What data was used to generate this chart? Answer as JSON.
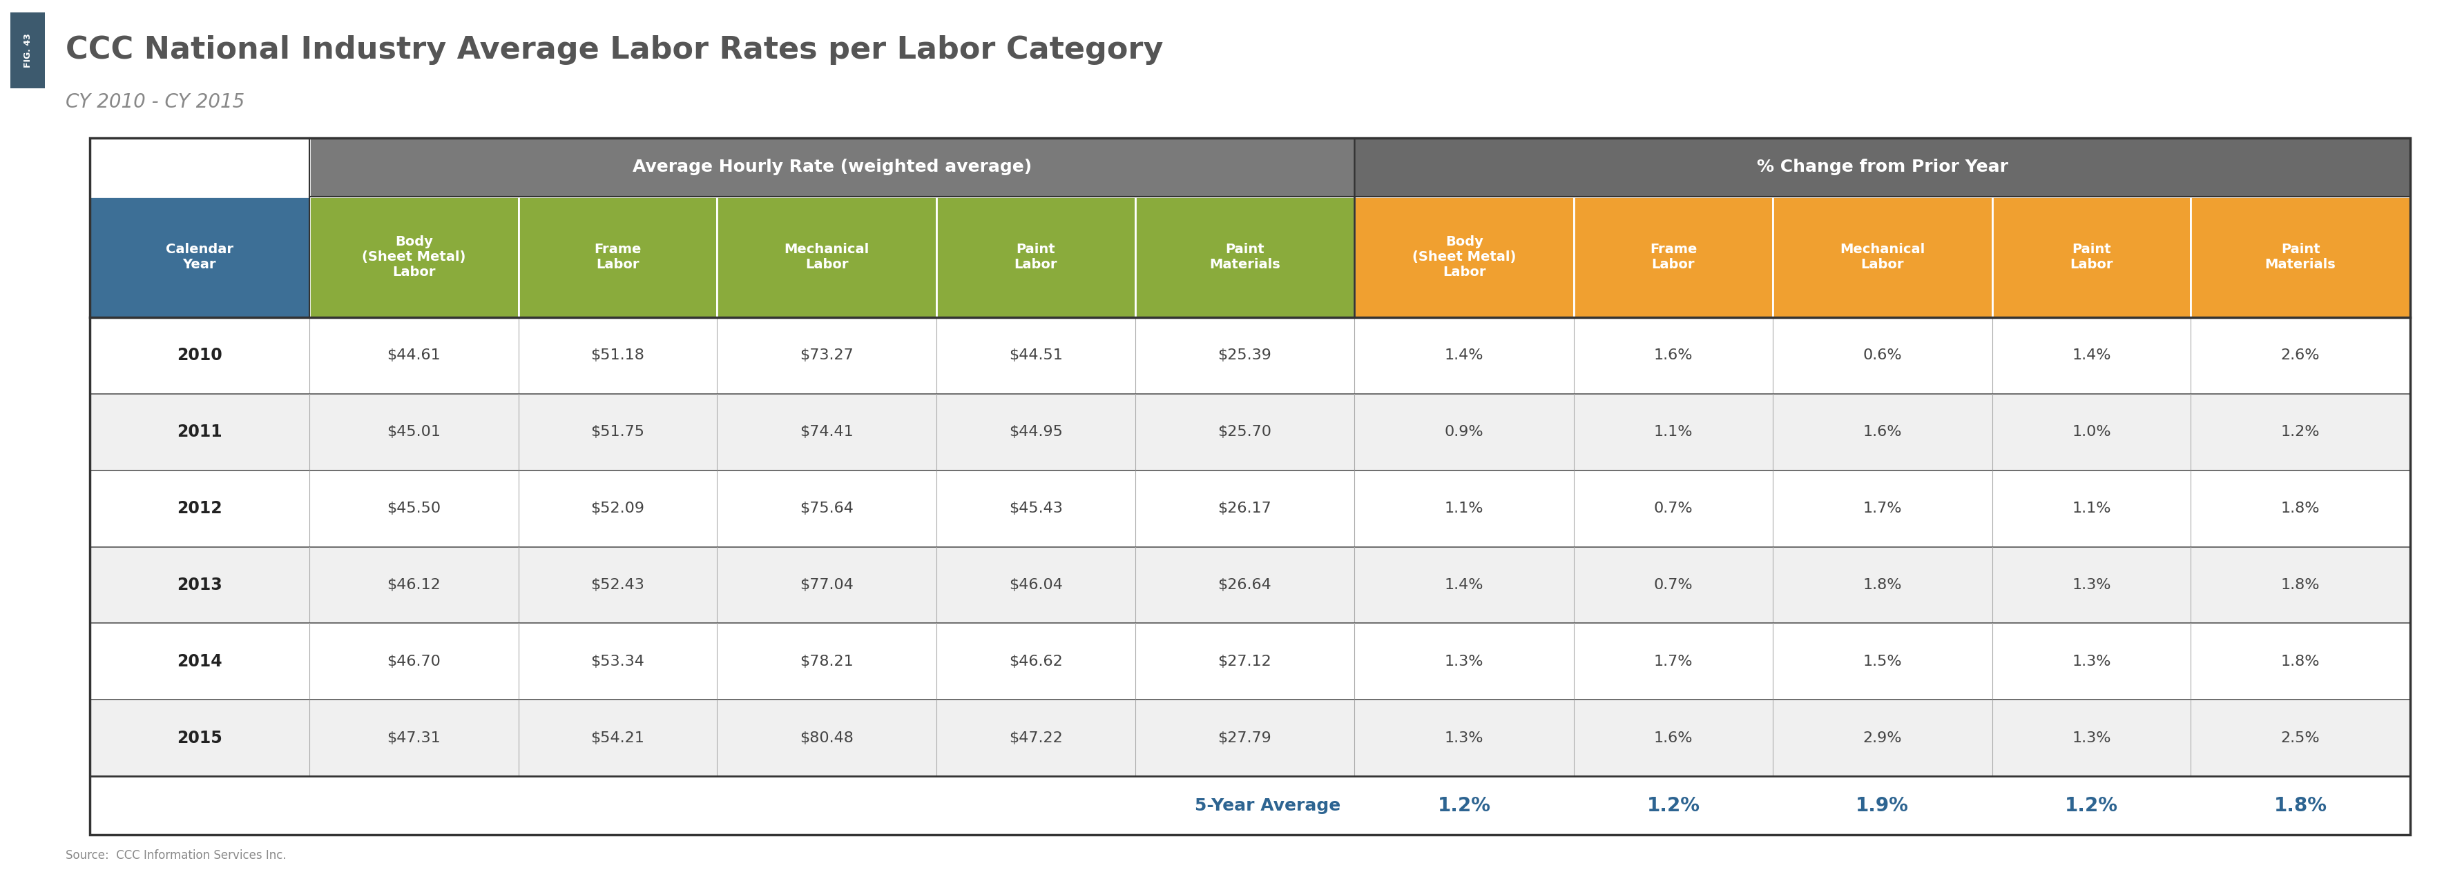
{
  "title": "CCC National Industry Average Labor Rates per Labor Category",
  "subtitle": "CY 2010 - CY 2015",
  "fig_label": "FIG. 43",
  "source": "Source:  CCC Information Services Inc.",
  "section1_header": "Average Hourly Rate (weighted average)",
  "section2_header": "% Change from Prior Year",
  "col_headers": [
    "Calendar\nYear",
    "Body\n(Sheet Metal)\nLabor",
    "Frame\nLabor",
    "Mechanical\nLabor",
    "Paint\nLabor",
    "Paint\nMaterials",
    "Body\n(Sheet Metal)\nLabor",
    "Frame\nLabor",
    "Mechanical\nLabor",
    "Paint\nLabor",
    "Paint\nMaterials"
  ],
  "rows": [
    [
      "2010",
      "$44.61",
      "$51.18",
      "$73.27",
      "$44.51",
      "$25.39",
      "1.4%",
      "1.6%",
      "0.6%",
      "1.4%",
      "2.6%"
    ],
    [
      "2011",
      "$45.01",
      "$51.75",
      "$74.41",
      "$44.95",
      "$25.70",
      "0.9%",
      "1.1%",
      "1.6%",
      "1.0%",
      "1.2%"
    ],
    [
      "2012",
      "$45.50",
      "$52.09",
      "$75.64",
      "$45.43",
      "$26.17",
      "1.1%",
      "0.7%",
      "1.7%",
      "1.1%",
      "1.8%"
    ],
    [
      "2013",
      "$46.12",
      "$52.43",
      "$77.04",
      "$46.04",
      "$26.64",
      "1.4%",
      "0.7%",
      "1.8%",
      "1.3%",
      "1.8%"
    ],
    [
      "2014",
      "$46.70",
      "$53.34",
      "$78.21",
      "$46.62",
      "$27.12",
      "1.3%",
      "1.7%",
      "1.5%",
      "1.3%",
      "1.8%"
    ],
    [
      "2015",
      "$47.31",
      "$54.21",
      "$80.48",
      "$47.22",
      "$27.79",
      "1.3%",
      "1.6%",
      "2.9%",
      "1.3%",
      "2.5%"
    ]
  ],
  "footer_label": "5-Year Average",
  "footer_values": [
    "1.2%",
    "1.2%",
    "1.9%",
    "1.2%",
    "1.8%"
  ],
  "color_calendar": "#3d6f96",
  "color_green": "#8aab3c",
  "color_orange": "#f0a030",
  "color_gray_header1": "#7a7a7a",
  "color_gray_header2": "#6a6a6a",
  "color_dark_label": "#3d5a6e",
  "color_row_even": "#f0f0f0",
  "color_row_odd": "#ffffff",
  "color_border": "#222222",
  "color_footer_text": "#2d6491",
  "color_title": "#555555",
  "color_subtitle": "#888888",
  "color_year_text": "#222222",
  "color_data_text": "#444444"
}
